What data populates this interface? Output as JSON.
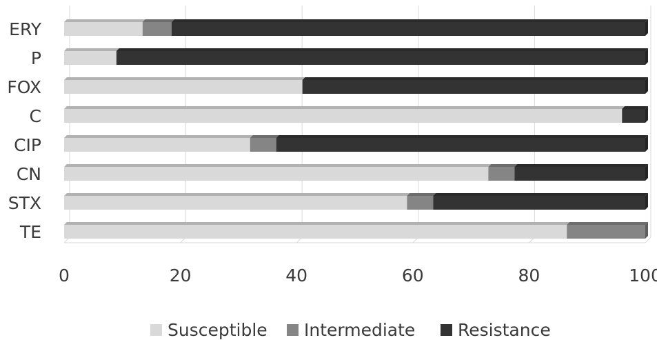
{
  "chart_data": {
    "type": "bar",
    "orientation": "horizontal",
    "stacked": true,
    "categories": [
      "ERY",
      "P",
      "FOX",
      "C",
      "CIP",
      "CN",
      "STX",
      "TE"
    ],
    "series": [
      {
        "name": "Susceptible",
        "color": "#d9d9d9",
        "values": [
          13.5,
          9,
          41,
          96,
          32,
          73,
          59,
          86.5
        ]
      },
      {
        "name": "Intermediate",
        "color": "#858585",
        "values": [
          5,
          0,
          0,
          0,
          4.5,
          4.5,
          4.5,
          13.5
        ]
      },
      {
        "name": "Resistance",
        "color": "#333333",
        "values": [
          81.5,
          91,
          59,
          4,
          63.5,
          22.5,
          36.5,
          0
        ]
      }
    ],
    "xlim": [
      0,
      100
    ],
    "xticks": [
      "0",
      "20",
      "40",
      "60",
      "80",
      "100"
    ],
    "grid": true,
    "legend_position": "bottom"
  }
}
